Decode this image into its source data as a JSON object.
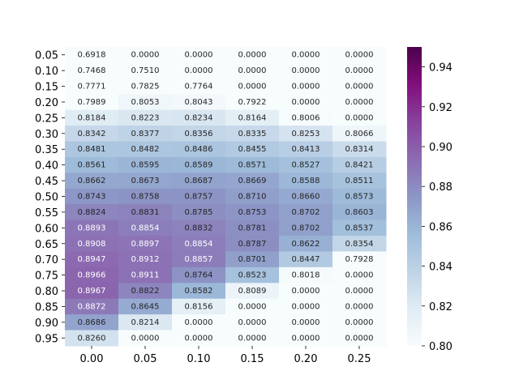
{
  "chart_data": {
    "type": "heatmap",
    "title": "",
    "xlabel": "",
    "ylabel": "",
    "x_categories": [
      "0.00",
      "0.05",
      "0.10",
      "0.15",
      "0.20",
      "0.25"
    ],
    "y_categories": [
      "0.05",
      "0.10",
      "0.15",
      "0.20",
      "0.25",
      "0.30",
      "0.35",
      "0.40",
      "0.45",
      "0.50",
      "0.55",
      "0.60",
      "0.65",
      "0.70",
      "0.75",
      "0.80",
      "0.85",
      "0.90",
      "0.95"
    ],
    "values": [
      [
        "0.6918",
        "0.0000",
        "0.0000",
        "0.0000",
        "0.0000",
        "0.0000"
      ],
      [
        "0.7468",
        "0.7510",
        "0.0000",
        "0.0000",
        "0.0000",
        "0.0000"
      ],
      [
        "0.7771",
        "0.7825",
        "0.7764",
        "0.0000",
        "0.0000",
        "0.0000"
      ],
      [
        "0.7989",
        "0.8053",
        "0.8043",
        "0.7922",
        "0.0000",
        "0.0000"
      ],
      [
        "0.8184",
        "0.8223",
        "0.8234",
        "0.8164",
        "0.8006",
        "0.0000"
      ],
      [
        "0.8342",
        "0.8377",
        "0.8356",
        "0.8335",
        "0.8253",
        "0.8066"
      ],
      [
        "0.8481",
        "0.8482",
        "0.8486",
        "0.8455",
        "0.8413",
        "0.8314"
      ],
      [
        "0.8561",
        "0.8595",
        "0.8589",
        "0.8571",
        "0.8527",
        "0.8421"
      ],
      [
        "0.8662",
        "0.8673",
        "0.8687",
        "0.8669",
        "0.8588",
        "0.8511"
      ],
      [
        "0.8743",
        "0.8758",
        "0.8757",
        "0.8710",
        "0.8660",
        "0.8573"
      ],
      [
        "0.8824",
        "0.8831",
        "0.8785",
        "0.8753",
        "0.8702",
        "0.8603"
      ],
      [
        "0.8893",
        "0.8854",
        "0.8832",
        "0.8781",
        "0.8702",
        "0.8537"
      ],
      [
        "0.8908",
        "0.8897",
        "0.8854",
        "0.8787",
        "0.8622",
        "0.8354"
      ],
      [
        "0.8947",
        "0.8912",
        "0.8857",
        "0.8701",
        "0.8447",
        "0.7928"
      ],
      [
        "0.8966",
        "0.8911",
        "0.8764",
        "0.8523",
        "0.8018",
        "0.0000"
      ],
      [
        "0.8967",
        "0.8822",
        "0.8582",
        "0.8089",
        "0.0000",
        "0.0000"
      ],
      [
        "0.8872",
        "0.8645",
        "0.8156",
        "0.0000",
        "0.0000",
        "0.0000"
      ],
      [
        "0.8686",
        "0.8214",
        "0.0000",
        "0.0000",
        "0.0000",
        "0.0000"
      ],
      [
        "0.8260",
        "0.0000",
        "0.0000",
        "0.0000",
        "0.0000",
        "0.0000"
      ]
    ],
    "colorbar": {
      "min": 0.8,
      "max": 0.95,
      "ticks": [
        "0.80",
        "0.82",
        "0.84",
        "0.86",
        "0.88",
        "0.90",
        "0.92",
        "0.94"
      ],
      "colormap": "BuPu",
      "stops": [
        "#f7fcfd",
        "#e0ecf4",
        "#bfd3e6",
        "#9ebcda",
        "#8c96c6",
        "#8c6bb1",
        "#88419d",
        "#810f7c",
        "#4d004b"
      ]
    },
    "grid": false,
    "legend": "colorbar-right"
  }
}
